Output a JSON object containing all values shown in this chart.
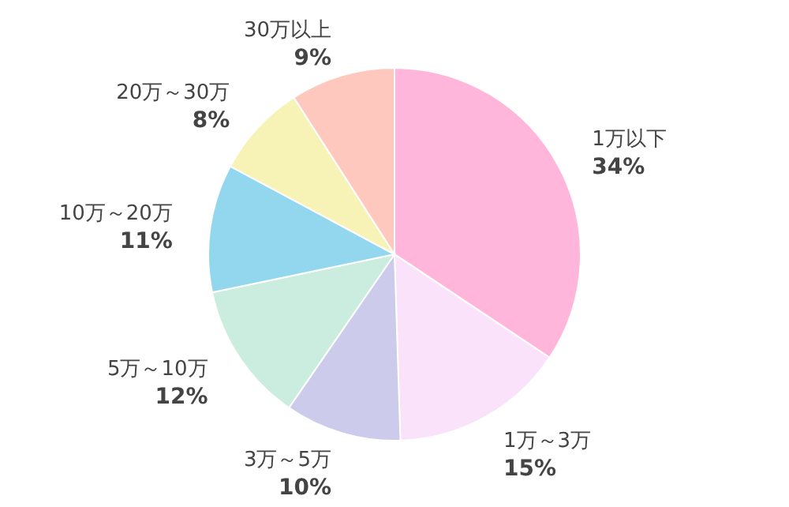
{
  "chart_data": {
    "type": "pie",
    "categories": [
      "1万以下",
      "1万～3万",
      "3万～5万",
      "5万～10万",
      "10万～20万",
      "20万～30万",
      "30万以上"
    ],
    "values": [
      34,
      15,
      10,
      12,
      11,
      8,
      9
    ],
    "value_labels": [
      "34%",
      "15%",
      "10%",
      "12%",
      "11%",
      "8%",
      "9%"
    ],
    "colors": [
      "#ffb6da",
      "#f9e2fa",
      "#cdcbec",
      "#cbeddf",
      "#92d7ee",
      "#f7f3b6",
      "#ffc8be"
    ]
  }
}
